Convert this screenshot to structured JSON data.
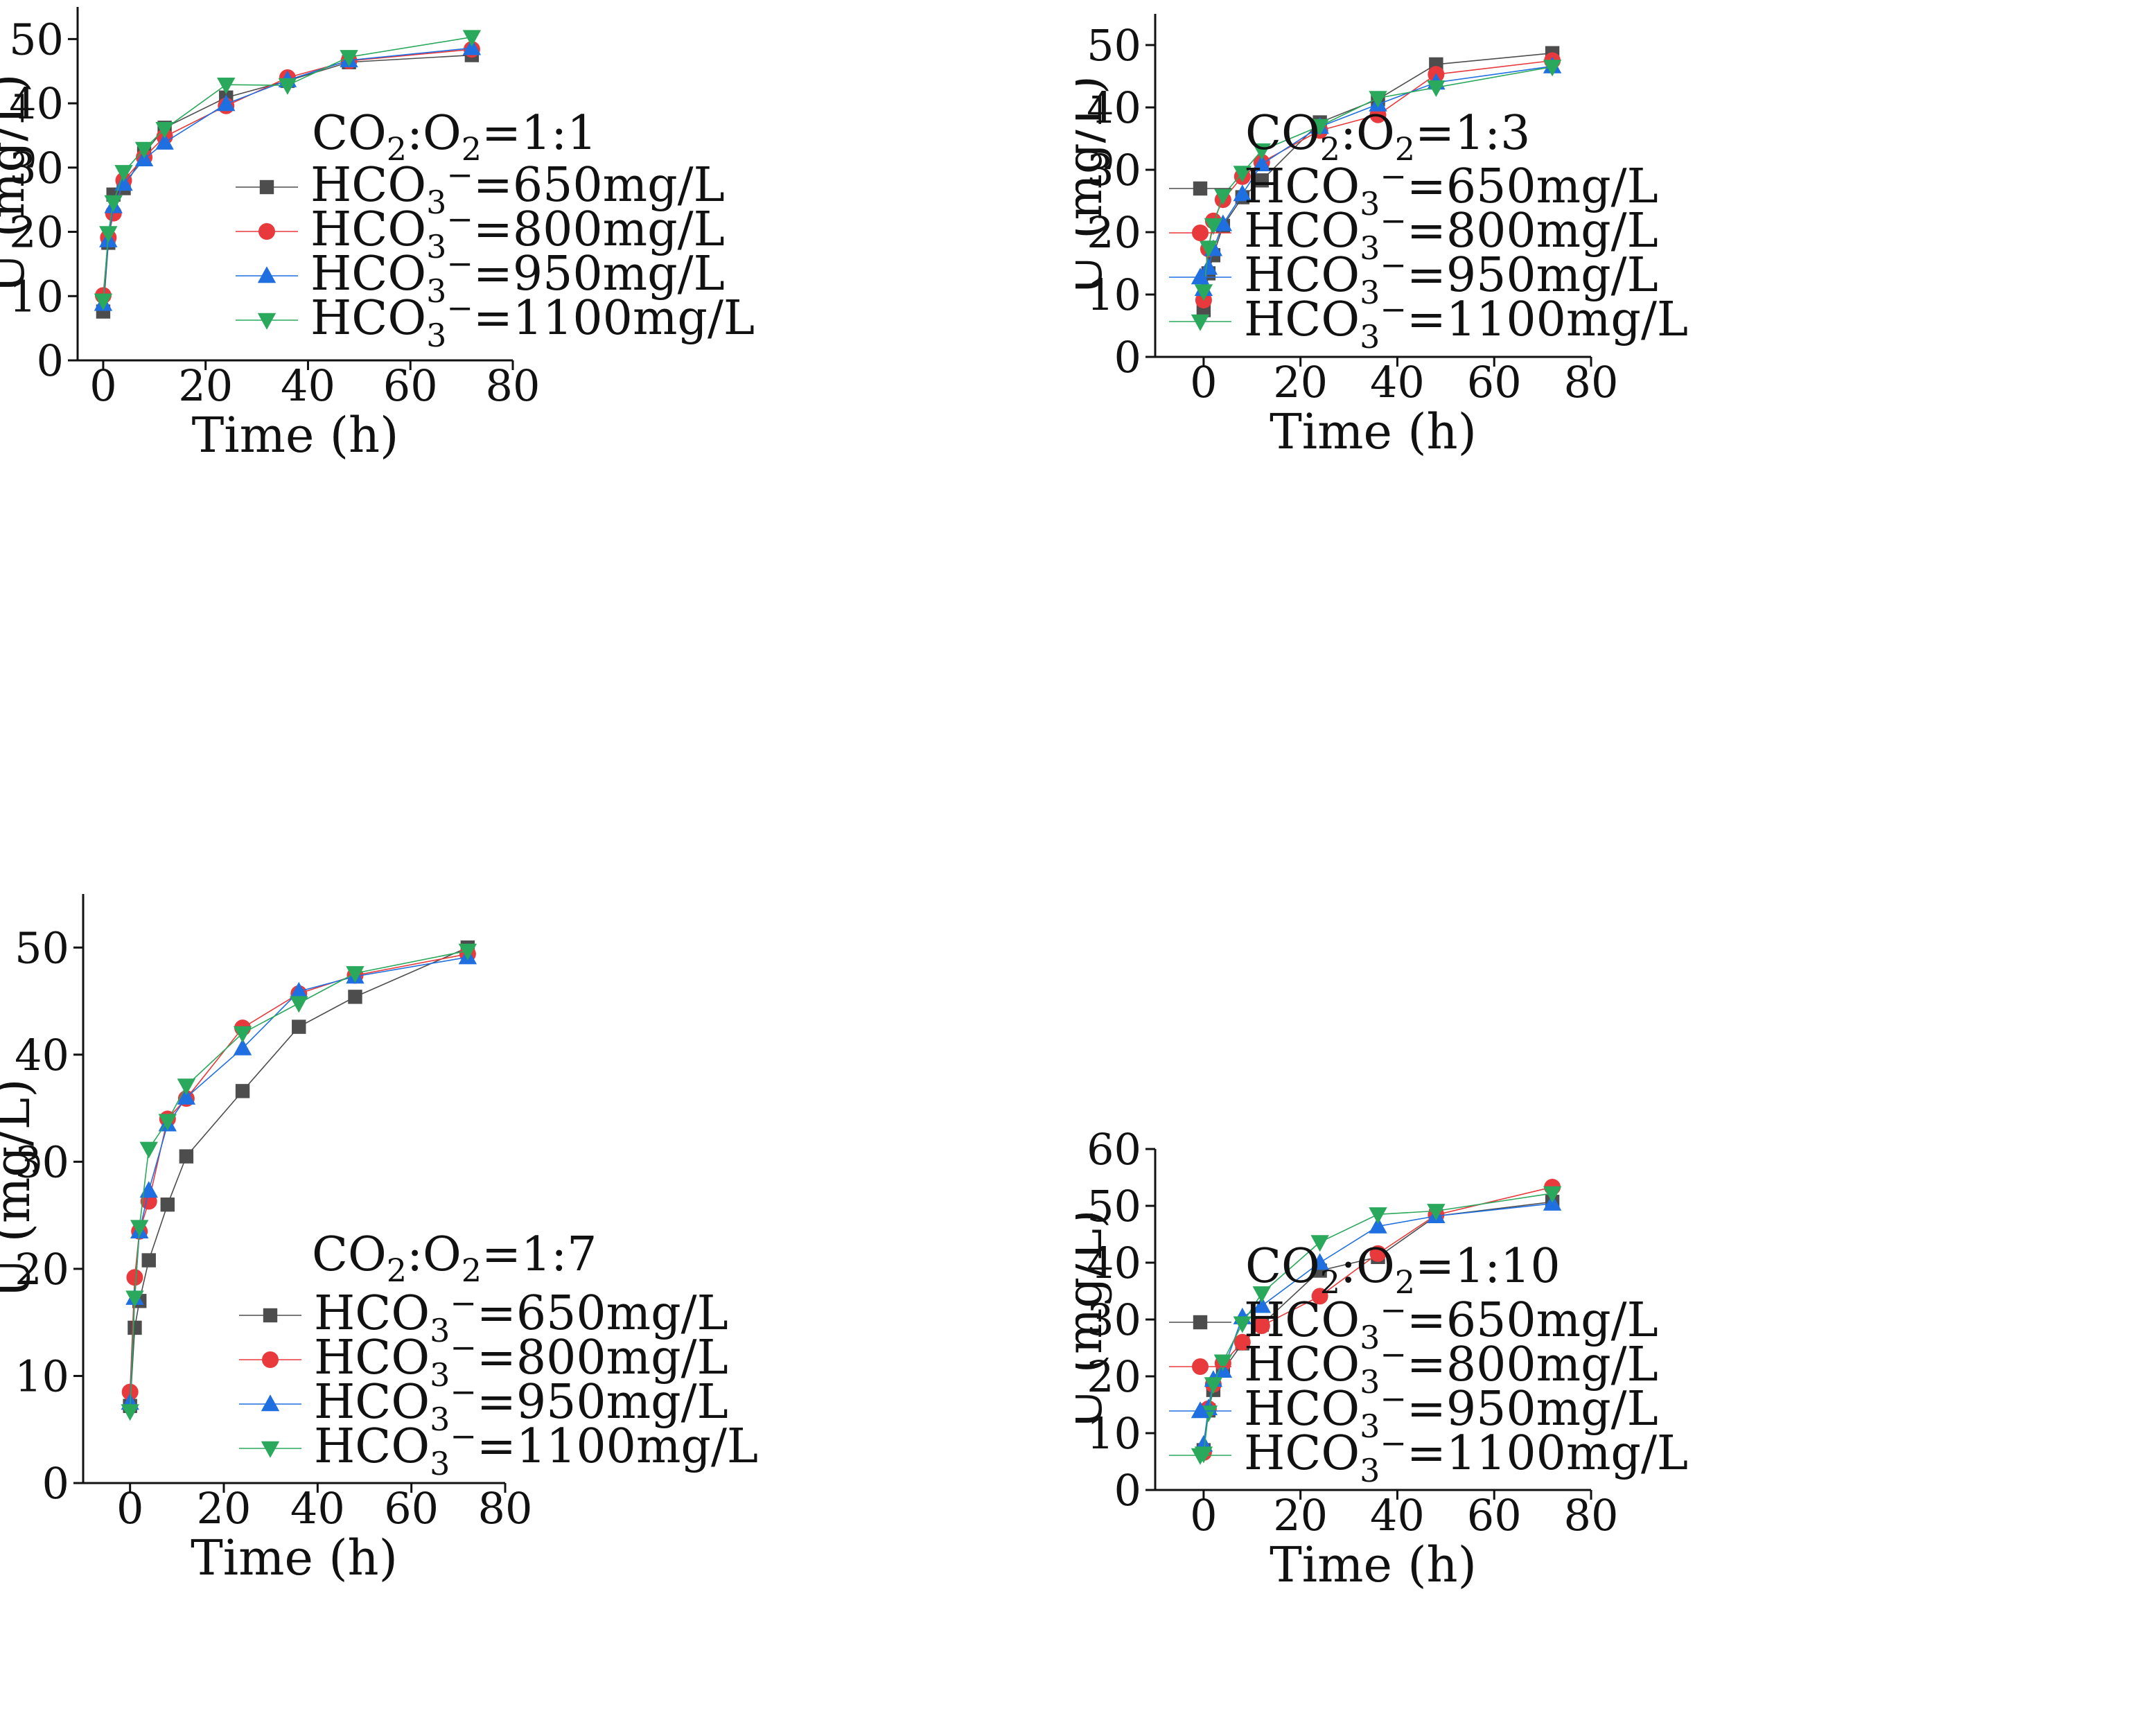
{
  "figure": {
    "description_colors": {
      "s650": "#4d4d4d",
      "s800": "#e8393c",
      "s950": "#1f6fe0",
      "s1100": "#2aa85c"
    }
  },
  "series_styles": [
    {
      "name": "HCO3-=650mg/L",
      "color": "#4d4d4d",
      "marker": "square"
    },
    {
      "name": "HCO3-=800mg/L",
      "color": "#e8393c",
      "marker": "circle"
    },
    {
      "name": "HCO3-=950mg/L",
      "color": "#1f6fe0",
      "marker": "triangle-up"
    },
    {
      "name": "HCO3-=1100mg/L",
      "color": "#2aa85c",
      "marker": "triangle-down"
    }
  ],
  "legend_text": {
    "ion_prefix": "HCO",
    "ion_sub": "3",
    "ion_sup": "−",
    "gas_co": "CO",
    "gas_sub": "2",
    "gas_colon": ":O",
    "labels_after": [
      "=650mg/L",
      "=800mg/L",
      "=950mg/L",
      "=1100mg/L"
    ]
  },
  "chart_data": [
    {
      "type": "line",
      "title": "CO2:O2=1:1",
      "title_ratio": "=1:1",
      "xlabel": "Time (h)",
      "ylabel": "U (mg/L)",
      "xlim": [
        -5,
        80
      ],
      "ylim": [
        0,
        55
      ],
      "xticks": [
        0,
        20,
        40,
        60,
        80
      ],
      "yticks": [
        0,
        10,
        20,
        30,
        40,
        50
      ],
      "x": [
        0,
        1,
        2,
        4,
        8,
        12,
        24,
        36,
        48,
        72
      ],
      "series": [
        {
          "name": "HCO3-=650mg/L",
          "values": [
            7.6,
            18.3,
            25.8,
            26.8,
            32.2,
            36.2,
            40.9,
            43.5,
            46.4,
            47.5
          ]
        },
        {
          "name": "HCO3-=800mg/L",
          "values": [
            10.1,
            19.1,
            22.9,
            28.0,
            31.6,
            34.8,
            39.6,
            44.0,
            46.6,
            48.4
          ]
        },
        {
          "name": "HCO3-=950mg/L",
          "values": [
            8.8,
            18.7,
            24.0,
            27.5,
            31.3,
            33.9,
            39.9,
            43.6,
            46.7,
            48.6
          ]
        },
        {
          "name": "HCO3-=1100mg/L",
          "values": [
            9.3,
            19.8,
            24.6,
            29.3,
            32.9,
            36.0,
            42.9,
            42.8,
            47.2,
            50.3
          ]
        }
      ]
    },
    {
      "type": "line",
      "title": "CO2:O2=1:3",
      "title_ratio": "=1:3",
      "xlabel": "Time (h)",
      "ylabel": "U (mg/L)",
      "xlim": [
        -10,
        80
      ],
      "ylim": [
        0,
        55
      ],
      "xticks": [
        0,
        20,
        40,
        60,
        80
      ],
      "yticks": [
        0,
        10,
        20,
        30,
        40,
        50
      ],
      "x": [
        0,
        1,
        2,
        4,
        8,
        12,
        24,
        36,
        48,
        72
      ],
      "series": [
        {
          "name": "HCO3-=650mg/L",
          "values": [
            7.5,
            13.4,
            16.3,
            21.0,
            25.6,
            28.3,
            37.6,
            41.3,
            46.9,
            48.7
          ]
        },
        {
          "name": "HCO3-=800mg/L",
          "values": [
            9.1,
            17.3,
            21.8,
            25.2,
            28.9,
            31.2,
            36.3,
            38.8,
            45.3,
            47.5
          ]
        },
        {
          "name": "HCO3-=950mg/L",
          "values": [
            10.9,
            14.3,
            17.3,
            21.3,
            26.1,
            30.9,
            36.9,
            40.5,
            44.0,
            46.6
          ]
        },
        {
          "name": "HCO3-=1100mg/L",
          "values": [
            10.5,
            17.5,
            21.1,
            25.9,
            29.5,
            33.1,
            37.0,
            41.5,
            43.2,
            46.5
          ]
        }
      ]
    },
    {
      "type": "line",
      "title": "CO2:O2=1:7",
      "title_ratio": "=1:7",
      "xlabel": "Time (h)",
      "ylabel": "U (mg/L)",
      "xlim": [
        -10,
        80
      ],
      "ylim": [
        0,
        55
      ],
      "xticks": [
        0,
        20,
        40,
        60,
        80
      ],
      "yticks": [
        0,
        10,
        20,
        30,
        40,
        50
      ],
      "x": [
        0,
        1,
        2,
        4,
        8,
        12,
        24,
        36,
        48,
        72
      ],
      "series": [
        {
          "name": "HCO3-=650mg/L",
          "values": [
            7.2,
            14.5,
            17.0,
            20.8,
            26.0,
            30.5,
            36.6,
            42.6,
            45.4,
            50.0
          ]
        },
        {
          "name": "HCO3-=800mg/L",
          "values": [
            8.5,
            19.2,
            23.5,
            26.3,
            34.0,
            35.9,
            42.5,
            45.7,
            47.4,
            49.4
          ]
        },
        {
          "name": "HCO3-=950mg/L",
          "values": [
            7.5,
            17.3,
            23.5,
            27.3,
            33.5,
            36.0,
            40.6,
            45.9,
            47.3,
            49.1
          ]
        },
        {
          "name": "HCO3-=1100mg/L",
          "values": [
            6.7,
            17.3,
            23.9,
            31.2,
            33.8,
            37.1,
            42.0,
            44.8,
            47.6,
            49.7
          ]
        }
      ]
    },
    {
      "type": "line",
      "title": "CO2:O2=1:10",
      "title_ratio": "=1:10",
      "xlabel": "Time (h)",
      "ylabel": "U (mg/L)",
      "xlim": [
        -10,
        80
      ],
      "ylim": [
        0,
        60
      ],
      "xticks": [
        0,
        20,
        40,
        60,
        80
      ],
      "yticks": [
        0,
        10,
        20,
        30,
        40,
        50,
        60
      ],
      "x": [
        0,
        1,
        2,
        4,
        8,
        12,
        24,
        36,
        48,
        72
      ],
      "series": [
        {
          "name": "HCO3-=650mg/L",
          "values": [
            7.0,
            14.0,
            17.6,
            21.0,
            25.8,
            29.1,
            38.6,
            41.0,
            48.2,
            50.7
          ]
        },
        {
          "name": "HCO3-=800mg/L",
          "values": [
            6.6,
            14.3,
            18.6,
            22.3,
            26.0,
            28.9,
            34.1,
            41.6,
            48.4,
            53.3
          ]
        },
        {
          "name": "HCO3-=950mg/L",
          "values": [
            8.0,
            14.4,
            19.4,
            21.0,
            30.4,
            32.4,
            40.0,
            46.4,
            48.2,
            50.4
          ]
        },
        {
          "name": "HCO3-=1100mg/L",
          "values": [
            6.4,
            13.6,
            18.6,
            22.6,
            29.3,
            34.6,
            43.6,
            48.5,
            49.1,
            52.2
          ]
        }
      ]
    }
  ]
}
